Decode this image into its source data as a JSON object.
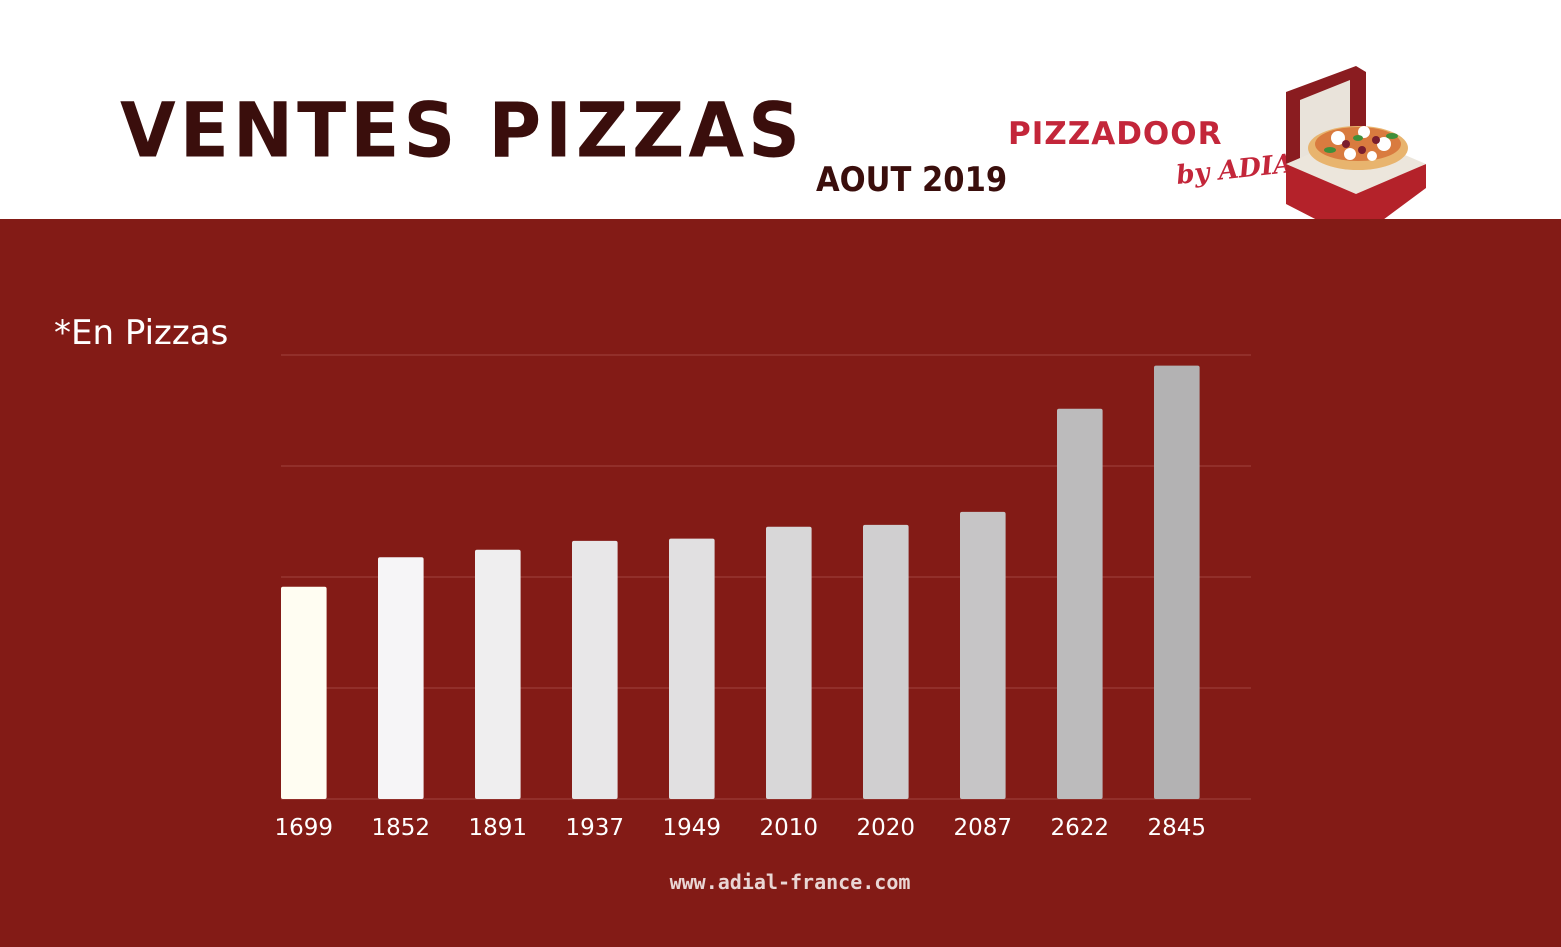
{
  "header": {
    "title": "VENTES PIZZAS",
    "subtitle": "AOUT 2019"
  },
  "logo": {
    "brand": "PIZZADOOR",
    "byline": "by ADIAL",
    "icon": "pizza-box-icon",
    "brand_color": "#c3263a"
  },
  "colors": {
    "panel_background": "#831b16",
    "title_color": "#3a0e0c",
    "gridline": "#a2433d"
  },
  "chart_data": {
    "type": "bar",
    "title": "VENTES PIZZAS",
    "ylabel": "*En Pizzas",
    "categories": [
      "1699",
      "1852",
      "1891",
      "1937",
      "1949",
      "2010",
      "2020",
      "2087",
      "2622",
      "2845"
    ],
    "values": [
      1699,
      1852,
      1891,
      1937,
      1949,
      2010,
      2020,
      2087,
      2622,
      2845
    ],
    "ylim": [
      600,
      2900
    ],
    "grid": true,
    "legend": "none",
    "bar_colors": [
      "#fffdf2",
      "#f6f5f7",
      "#efeeef",
      "#e8e7e8",
      "#e1e0e1",
      "#d8d7d8",
      "#d0cfd0",
      "#c6c5c6",
      "#bcbbbc",
      "#b3b2b3"
    ]
  },
  "footer": {
    "url": "www.adial-france.com"
  }
}
